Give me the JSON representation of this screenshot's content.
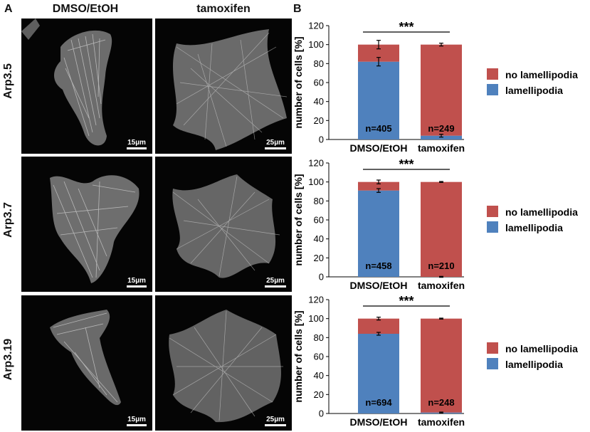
{
  "panel_a": {
    "letter": "A",
    "columns": [
      "DMSO/EtOH",
      "tamoxifen"
    ],
    "rows": [
      {
        "label": "Arp3.5",
        "scale_left": "15µm",
        "scale_right": "25µm"
      },
      {
        "label": "Arp3.7",
        "scale_left": "15µm",
        "scale_right": "25µm"
      },
      {
        "label": "Arp3.19",
        "scale_left": "15µm",
        "scale_right": "25µm"
      }
    ]
  },
  "panel_b": {
    "letter": "B"
  },
  "colors": {
    "no_lamellipodia": "#c0504d",
    "lamellipodia": "#4f81bd"
  },
  "chart_data": [
    {
      "type": "bar",
      "stacked": true,
      "categories": [
        "DMSO/EtOH",
        "tamoxifen"
      ],
      "series": [
        {
          "name": "lamellipodia",
          "values": [
            82,
            4
          ],
          "errors": [
            4.5,
            1.5
          ]
        },
        {
          "name": "no lamellipodia",
          "values": [
            18,
            96
          ],
          "errors": [
            4.5,
            1.5
          ]
        }
      ],
      "n_labels": [
        "n=405",
        "n=249"
      ],
      "significance": "***",
      "ylabel": "number of cells [%]",
      "ylim": [
        0,
        120
      ],
      "yticks": [
        "0",
        "20",
        "40",
        "60",
        "80",
        "100",
        "120"
      ],
      "legend": [
        "no lamellipodia",
        "lamellipodia"
      ]
    },
    {
      "type": "bar",
      "stacked": true,
      "categories": [
        "DMSO/EtOH",
        "tamoxifen"
      ],
      "series": [
        {
          "name": "lamellipodia",
          "values": [
            91,
            0
          ],
          "errors": [
            2,
            0.5
          ]
        },
        {
          "name": "no lamellipodia",
          "values": [
            9,
            100
          ],
          "errors": [
            2,
            0.5
          ]
        }
      ],
      "n_labels": [
        "n=458",
        "n=210"
      ],
      "significance": "***",
      "ylabel": "number of cells [%]",
      "ylim": [
        0,
        120
      ],
      "yticks": [
        "0",
        "20",
        "40",
        "60",
        "80",
        "100",
        "120"
      ],
      "legend": [
        "no lamellipodia",
        "lamellipodia"
      ]
    },
    {
      "type": "bar",
      "stacked": true,
      "categories": [
        "DMSO/EtOH",
        "tamoxifen"
      ],
      "series": [
        {
          "name": "lamellipodia",
          "values": [
            84,
            1
          ],
          "errors": [
            1.5,
            0.5
          ]
        },
        {
          "name": "no lamellipodia",
          "values": [
            16,
            99
          ],
          "errors": [
            1.5,
            0.5
          ]
        }
      ],
      "n_labels": [
        "n=694",
        "n=248"
      ],
      "significance": "***",
      "ylabel": "number of cells [%]",
      "ylim": [
        0,
        120
      ],
      "yticks": [
        "0",
        "20",
        "40",
        "60",
        "80",
        "100",
        "120"
      ],
      "legend": [
        "no lamellipodia",
        "lamellipodia"
      ]
    }
  ]
}
